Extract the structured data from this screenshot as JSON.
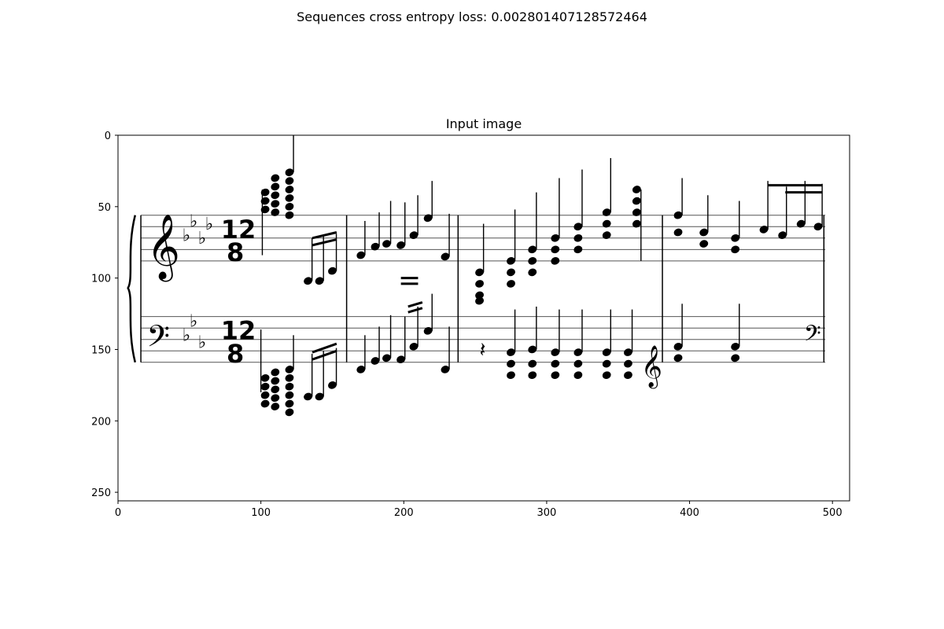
{
  "figure": {
    "suptitle": "Sequences cross entropy loss: 0.002801407128572464"
  },
  "chart_data": {
    "type": "image",
    "title": "Input image",
    "xlabel": "",
    "ylabel": "",
    "xlim": [
      0,
      512
    ],
    "ylim": [
      256,
      0
    ],
    "x_ticks": [
      0,
      100,
      200,
      300,
      400,
      500
    ],
    "y_ticks": [
      0,
      50,
      100,
      150,
      200,
      250
    ],
    "grid": false,
    "image": {
      "content": "piano-sheet-music-grand-staff",
      "key_signature_flats": 3,
      "time_signature": "12/8",
      "barlines_x": [
        160,
        238,
        381,
        494
      ]
    }
  }
}
